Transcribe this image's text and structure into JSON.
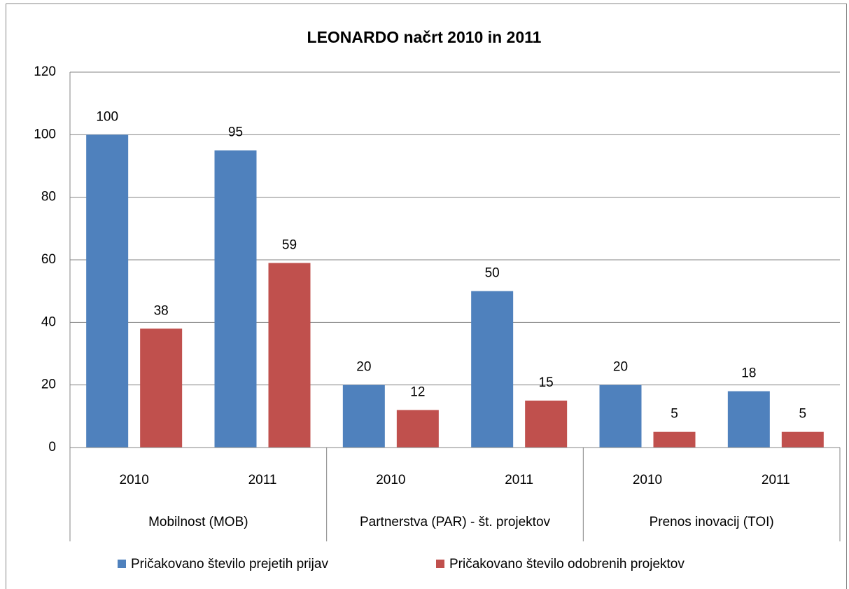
{
  "chart_data": {
    "type": "bar",
    "title": "LEONARDO načrt 2010 in 2011",
    "categories": [
      "2010",
      "2011",
      "2010",
      "2011",
      "2010",
      "2011"
    ],
    "groups": [
      "Mobilnost (MOB)",
      "Partnerstva (PAR) - št. projektov",
      "Prenos inovacij (TOI)"
    ],
    "series": [
      {
        "name": "Pričakovano število prejetih prijav",
        "color": "#4f81bd",
        "values": [
          100,
          95,
          20,
          50,
          20,
          18
        ]
      },
      {
        "name": "Pričakovano število odobrenih projektov",
        "color": "#c0504d",
        "values": [
          38,
          59,
          12,
          15,
          5,
          5
        ]
      }
    ],
    "ylim": [
      0,
      120
    ],
    "yticks": [
      0,
      20,
      40,
      60,
      80,
      100,
      120
    ],
    "grid": true,
    "legend": "bottom"
  }
}
